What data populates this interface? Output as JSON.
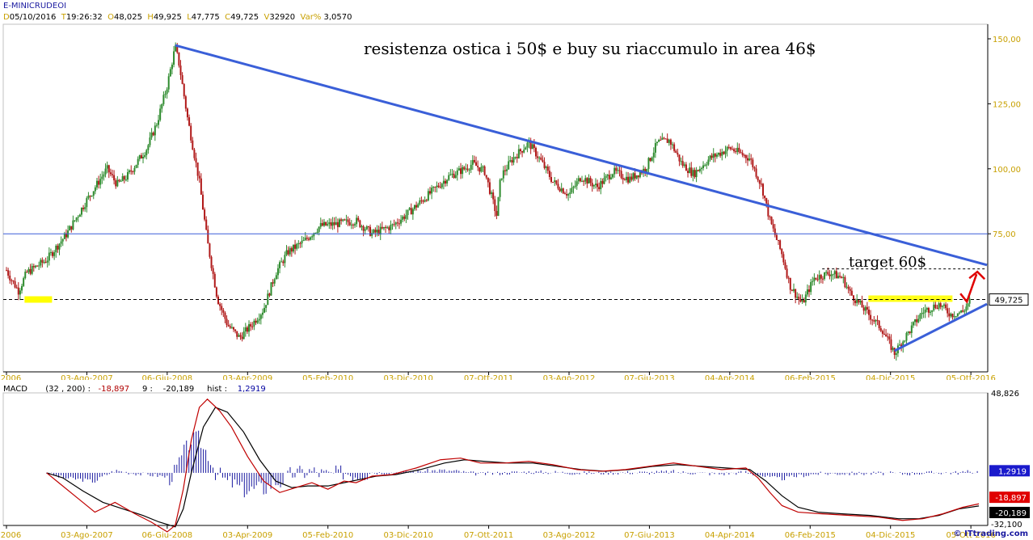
{
  "header": {
    "title": "E-MINICRUDEOI",
    "d_key": "D",
    "date": "05/10/2016",
    "t_key": "T",
    "time": "19:26:32",
    "o_key": "O",
    "open": "48,025",
    "h_key": "H",
    "high": "49,925",
    "l_key": "L",
    "low": "47,775",
    "c_key": "C",
    "close": "49,725",
    "v_key": "V",
    "volume": "32920",
    "var_key": "Var%",
    "var": "3,0570"
  },
  "annotations": {
    "headline": "resistenza ostica i 50$ e buy su riaccumulo in area 46$",
    "target": "target 60$"
  },
  "macd_header": {
    "name": "MACD",
    "params": "(32 , 200) :",
    "macd_value": "-18,897",
    "signal_label": "9 :",
    "signal_value": "-20,189",
    "hist_label": "hist :",
    "hist_value": "1,2919"
  },
  "copyright": "© ITtrading.com",
  "colors": {
    "trendline": "#3a5fd8",
    "candle_up": "#2e8b2e",
    "candle_down": "#b01818",
    "highlight": "#ffff00",
    "macd_line": "#c00000",
    "signal_line": "#000000",
    "histogram": "#1a1aa0",
    "arrow": "#e00000"
  },
  "chart_data": [
    {
      "type": "line",
      "description": "Candlestick price chart, weekly",
      "x_tick_labels": [
        "tt 2006",
        "03-Ago-2007",
        "06-Giu-2008",
        "03-Apr-2009",
        "05-Feb-2010",
        "03-Dic-2010",
        "07-Ott-2011",
        "03-Ago-2012",
        "07-Giu-2013",
        "04-Apr-2014",
        "06-Feb-2015",
        "04-Dic-2015",
        "05-Ott-2016"
      ],
      "y_tick_labels": [
        "150,00",
        "125,00",
        "100,00",
        "75,00"
      ],
      "ylim": [
        20,
        152
      ],
      "last_price_label": "49,725",
      "price_path": [
        [
          0,
          61
        ],
        [
          0.2,
          58
        ],
        [
          0.6,
          53
        ],
        [
          1.0,
          60
        ],
        [
          2.0,
          65
        ],
        [
          3.0,
          75
        ],
        [
          4.0,
          88
        ],
        [
          5.0,
          100
        ],
        [
          5.5,
          94
        ],
        [
          6.0,
          97
        ],
        [
          7.0,
          108
        ],
        [
          7.5,
          118
        ],
        [
          8.0,
          132
        ],
        [
          8.4,
          147
        ],
        [
          8.6,
          140
        ],
        [
          9.0,
          120
        ],
        [
          9.6,
          95
        ],
        [
          10.0,
          72
        ],
        [
          10.5,
          50
        ],
        [
          11.0,
          40
        ],
        [
          11.6,
          35
        ],
        [
          12.2,
          40
        ],
        [
          12.8,
          46
        ],
        [
          13.4,
          60
        ],
        [
          14.0,
          68
        ],
        [
          14.8,
          72
        ],
        [
          15.6,
          78
        ],
        [
          16.6,
          79
        ],
        [
          17.4,
          80
        ],
        [
          18.2,
          75
        ],
        [
          19.2,
          78
        ],
        [
          20.0,
          83
        ],
        [
          21.0,
          90
        ],
        [
          22.0,
          97
        ],
        [
          22.8,
          100
        ],
        [
          23.2,
          102
        ],
        [
          23.8,
          99
        ],
        [
          24.4,
          82
        ],
        [
          24.6,
          97
        ],
        [
          25.2,
          104
        ],
        [
          26.0,
          110
        ],
        [
          26.6,
          103
        ],
        [
          27.2,
          95
        ],
        [
          28.0,
          90
        ],
        [
          28.6,
          97
        ],
        [
          29.4,
          93
        ],
        [
          30.2,
          99
        ],
        [
          31.0,
          96
        ],
        [
          31.8,
          100
        ],
        [
          32.4,
          110
        ],
        [
          33.0,
          111
        ],
        [
          33.6,
          102
        ],
        [
          34.2,
          98
        ],
        [
          35.0,
          104
        ],
        [
          36.0,
          108
        ],
        [
          37.0,
          104
        ],
        [
          37.6,
          93
        ],
        [
          38.0,
          80
        ],
        [
          38.6,
          67
        ],
        [
          39.0,
          55
        ],
        [
          39.6,
          48
        ],
        [
          40.2,
          58
        ],
        [
          41.0,
          60
        ],
        [
          41.6,
          58
        ],
        [
          42.0,
          52
        ],
        [
          42.8,
          45
        ],
        [
          43.6,
          38
        ],
        [
          44.2,
          29
        ],
        [
          44.8,
          36
        ],
        [
          45.6,
          45
        ],
        [
          46.4,
          48
        ],
        [
          47.0,
          44
        ],
        [
          47.6,
          45
        ],
        [
          48.0,
          49.7
        ]
      ],
      "x_unit_note_hidden": "",
      "series": [
        {
          "name": "",
          "kind": "horizontal_line",
          "y": 75
        },
        {
          "name": "",
          "kind": "dashed_line",
          "y": 49.725
        },
        {
          "name": "",
          "kind": "dashed_line",
          "y": 61.5
        },
        {
          "name": "",
          "kind": "trendline",
          "from": [
            8.4,
            147.5
          ],
          "to": [
            48.8,
            63
          ]
        },
        {
          "name": "",
          "kind": "trendline",
          "from": [
            44.2,
            30
          ],
          "to": [
            48.8,
            48
          ]
        }
      ]
    },
    {
      "type": "line",
      "description": "MACD (32, 200) with signal 9 and histogram",
      "y_tick_labels": [
        "48,826",
        "-32,100"
      ],
      "ylim": [
        -32.1,
        48.826
      ],
      "last_values": {
        "macd": -18.897,
        "signal": -20.189,
        "hist": 1.2919
      },
      "macd_path": [
        [
          2.0,
          0
        ],
        [
          2.6,
          -6
        ],
        [
          3.4,
          -14
        ],
        [
          4.4,
          -24
        ],
        [
          5.4,
          -18
        ],
        [
          6.4,
          -25
        ],
        [
          7.2,
          -30
        ],
        [
          8.0,
          -36
        ],
        [
          8.4,
          -32
        ],
        [
          8.8,
          -10
        ],
        [
          9.2,
          20
        ],
        [
          9.6,
          40
        ],
        [
          10.0,
          45
        ],
        [
          10.6,
          38
        ],
        [
          11.2,
          28
        ],
        [
          12.0,
          10
        ],
        [
          12.8,
          -5
        ],
        [
          13.6,
          -12
        ],
        [
          14.4,
          -9
        ],
        [
          15.2,
          -6
        ],
        [
          16.0,
          -10
        ],
        [
          16.8,
          -5
        ],
        [
          17.4,
          -6
        ],
        [
          18.2,
          -2
        ],
        [
          19.2,
          -1
        ],
        [
          20.4,
          3
        ],
        [
          21.6,
          8
        ],
        [
          22.6,
          9
        ],
        [
          23.6,
          6
        ],
        [
          24.8,
          6
        ],
        [
          26.0,
          7
        ],
        [
          27.2,
          5
        ],
        [
          28.4,
          2
        ],
        [
          29.6,
          1
        ],
        [
          30.8,
          2
        ],
        [
          32.0,
          4
        ],
        [
          33.2,
          6
        ],
        [
          34.4,
          4
        ],
        [
          35.6,
          2
        ],
        [
          36.8,
          3
        ],
        [
          37.4,
          -3
        ],
        [
          38.0,
          -12
        ],
        [
          38.6,
          -20
        ],
        [
          39.4,
          -24
        ],
        [
          40.6,
          -25
        ],
        [
          42.0,
          -26
        ],
        [
          43.4,
          -27
        ],
        [
          44.6,
          -29
        ],
        [
          45.6,
          -28
        ],
        [
          46.6,
          -25
        ],
        [
          47.6,
          -21
        ],
        [
          48.4,
          -18.9
        ]
      ],
      "signal_path": [
        [
          2.0,
          0
        ],
        [
          2.8,
          -3
        ],
        [
          3.8,
          -11
        ],
        [
          4.8,
          -18
        ],
        [
          5.8,
          -22
        ],
        [
          6.8,
          -26
        ],
        [
          7.6,
          -30
        ],
        [
          8.4,
          -33
        ],
        [
          8.8,
          -22
        ],
        [
          9.2,
          0
        ],
        [
          9.8,
          28
        ],
        [
          10.4,
          40
        ],
        [
          11.0,
          37
        ],
        [
          11.8,
          25
        ],
        [
          12.6,
          8
        ],
        [
          13.4,
          -5
        ],
        [
          14.2,
          -9
        ],
        [
          15.0,
          -8
        ],
        [
          16.0,
          -8
        ],
        [
          16.8,
          -6
        ],
        [
          17.6,
          -4
        ],
        [
          18.4,
          -2
        ],
        [
          19.4,
          -1
        ],
        [
          20.6,
          2
        ],
        [
          21.8,
          6
        ],
        [
          22.8,
          8
        ],
        [
          23.8,
          7
        ],
        [
          25.0,
          6
        ],
        [
          26.2,
          6
        ],
        [
          27.4,
          4
        ],
        [
          28.6,
          2
        ],
        [
          29.8,
          1
        ],
        [
          31.0,
          2
        ],
        [
          32.2,
          4
        ],
        [
          33.4,
          5
        ],
        [
          34.6,
          4
        ],
        [
          35.8,
          3
        ],
        [
          37.0,
          2
        ],
        [
          37.8,
          -5
        ],
        [
          38.6,
          -14
        ],
        [
          39.4,
          -21
        ],
        [
          40.4,
          -24
        ],
        [
          41.6,
          -25
        ],
        [
          43.0,
          -26
        ],
        [
          44.4,
          -28
        ],
        [
          45.4,
          -28
        ],
        [
          46.4,
          -26
        ],
        [
          47.4,
          -22
        ],
        [
          48.4,
          -20.2
        ]
      ]
    }
  ]
}
